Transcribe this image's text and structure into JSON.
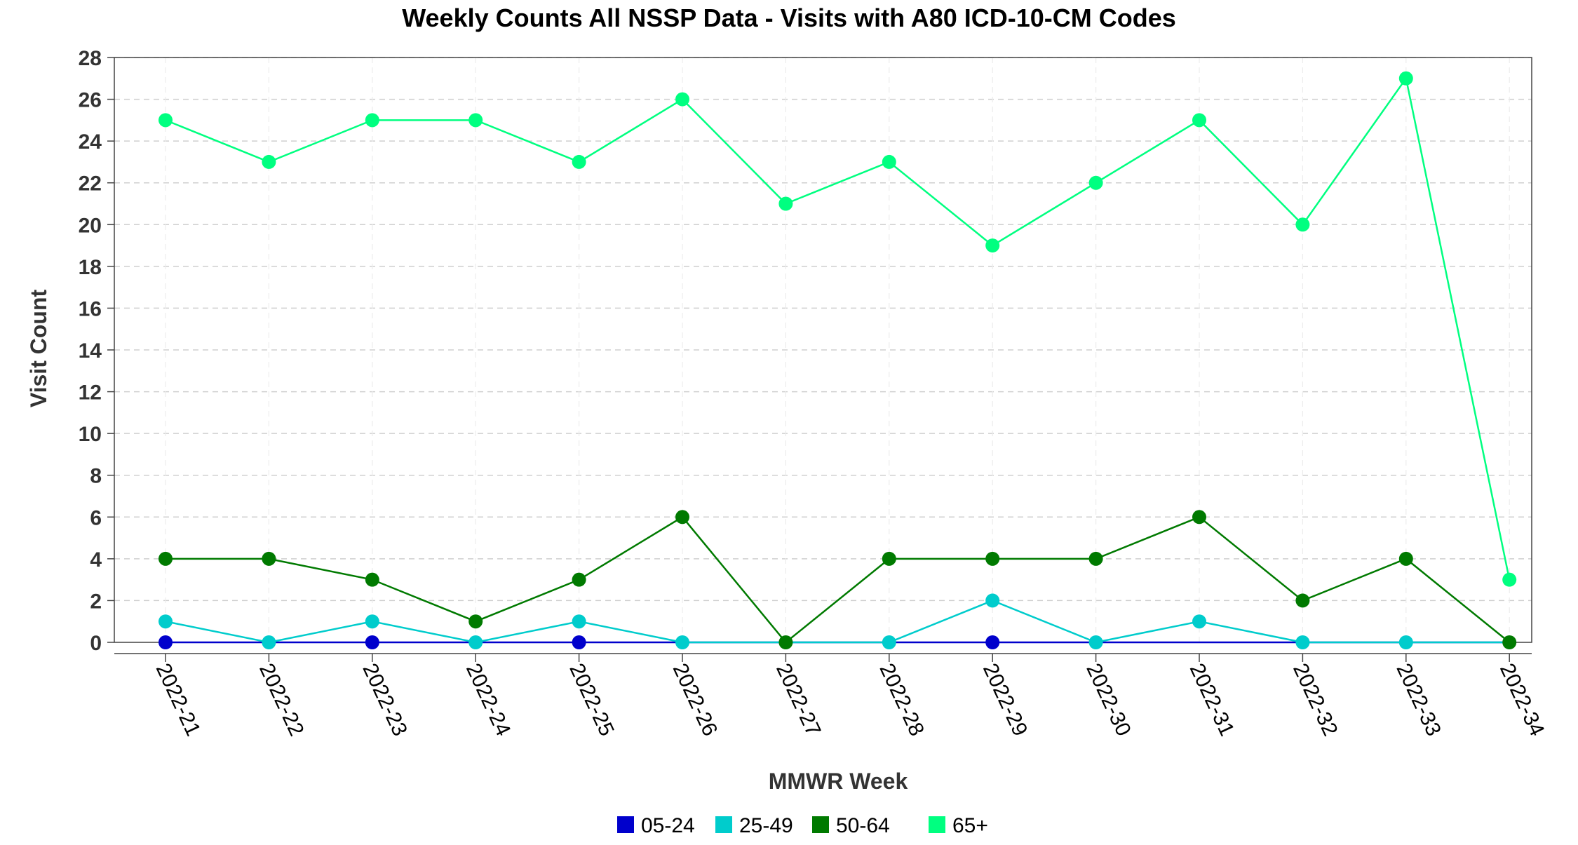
{
  "chart_data": {
    "type": "line",
    "title": "Weekly Counts All NSSP Data - Visits with A80 ICD-10-CM Codes",
    "xlabel": "MMWR Week",
    "ylabel": "Visit Count",
    "categories": [
      "2022-21",
      "2022-22",
      "2022-23",
      "2022-24",
      "2022-25",
      "2022-26",
      "2022-27",
      "2022-28",
      "2022-29",
      "2022-30",
      "2022-31",
      "2022-32",
      "2022-33",
      "2022-34"
    ],
    "ylim": [
      0,
      28
    ],
    "yticks": [
      0,
      2,
      4,
      6,
      8,
      10,
      12,
      14,
      16,
      18,
      20,
      22,
      24,
      26,
      28
    ],
    "grid": true,
    "legend_position": "bottom-center",
    "series": [
      {
        "name": "05-24",
        "color": "#0000CC",
        "values": [
          0,
          0,
          0,
          0,
          0,
          0,
          0,
          0,
          0,
          0,
          0,
          0,
          0,
          0
        ],
        "markers": [
          true,
          false,
          true,
          false,
          true,
          false,
          false,
          false,
          true,
          false,
          false,
          false,
          false,
          false
        ]
      },
      {
        "name": "25-49",
        "color": "#00CCCC",
        "values": [
          1,
          0,
          1,
          0,
          1,
          0,
          0,
          0,
          2,
          0,
          1,
          0,
          0,
          0
        ],
        "markers": [
          true,
          true,
          true,
          true,
          true,
          true,
          false,
          true,
          true,
          true,
          true,
          true,
          true,
          false
        ]
      },
      {
        "name": "50-64",
        "color": "#007A00",
        "values": [
          4,
          4,
          3,
          1,
          3,
          6,
          0,
          4,
          4,
          4,
          6,
          2,
          4,
          0
        ],
        "markers": [
          true,
          true,
          true,
          true,
          true,
          true,
          true,
          true,
          true,
          true,
          true,
          true,
          true,
          true
        ]
      },
      {
        "name": "65+",
        "color": "#00FF80",
        "values": [
          25,
          23,
          25,
          25,
          23,
          26,
          21,
          23,
          19,
          22,
          25,
          20,
          27,
          3
        ],
        "markers": [
          true,
          true,
          true,
          true,
          true,
          true,
          true,
          true,
          true,
          true,
          true,
          true,
          true,
          true
        ]
      }
    ]
  }
}
